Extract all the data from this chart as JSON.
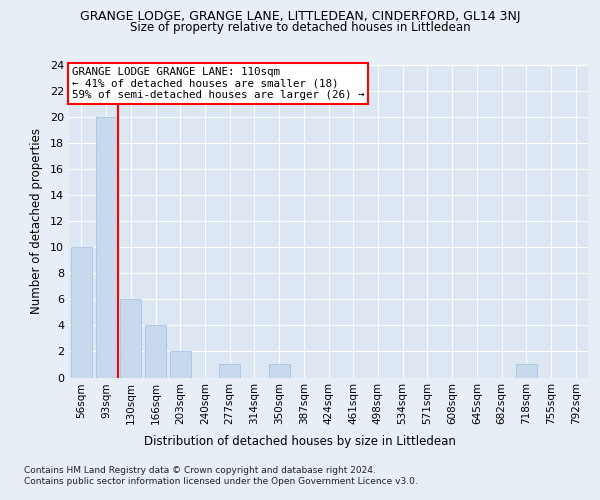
{
  "title": "GRANGE LODGE, GRANGE LANE, LITTLEDEAN, CINDERFORD, GL14 3NJ",
  "subtitle": "Size of property relative to detached houses in Littledean",
  "xlabel": "Distribution of detached houses by size in Littledean",
  "ylabel": "Number of detached properties",
  "categories": [
    "56sqm",
    "93sqm",
    "130sqm",
    "166sqm",
    "203sqm",
    "240sqm",
    "277sqm",
    "314sqm",
    "350sqm",
    "387sqm",
    "424sqm",
    "461sqm",
    "498sqm",
    "534sqm",
    "571sqm",
    "608sqm",
    "645sqm",
    "682sqm",
    "718sqm",
    "755sqm",
    "792sqm"
  ],
  "values": [
    10,
    20,
    6,
    4,
    2,
    0,
    1,
    0,
    1,
    0,
    0,
    0,
    0,
    0,
    0,
    0,
    0,
    0,
    1,
    0,
    0
  ],
  "bar_color": "#c8d9ee",
  "bar_edge_color": "#a0bedf",
  "vline_label": "110sqm",
  "annotation_title": "GRANGE LODGE GRANGE LANE: 110sqm",
  "annotation_line1": "← 41% of detached houses are smaller (18)",
  "annotation_line2": "59% of semi-detached houses are larger (26) →",
  "ylim": [
    0,
    24
  ],
  "yticks": [
    0,
    2,
    4,
    6,
    8,
    10,
    12,
    14,
    16,
    18,
    20,
    22,
    24
  ],
  "footer1": "Contains HM Land Registry data © Crown copyright and database right 2024.",
  "footer2": "Contains public sector information licensed under the Open Government Licence v3.0.",
  "background_color": "#e8eef5",
  "plot_bg_color": "#dce7f3"
}
